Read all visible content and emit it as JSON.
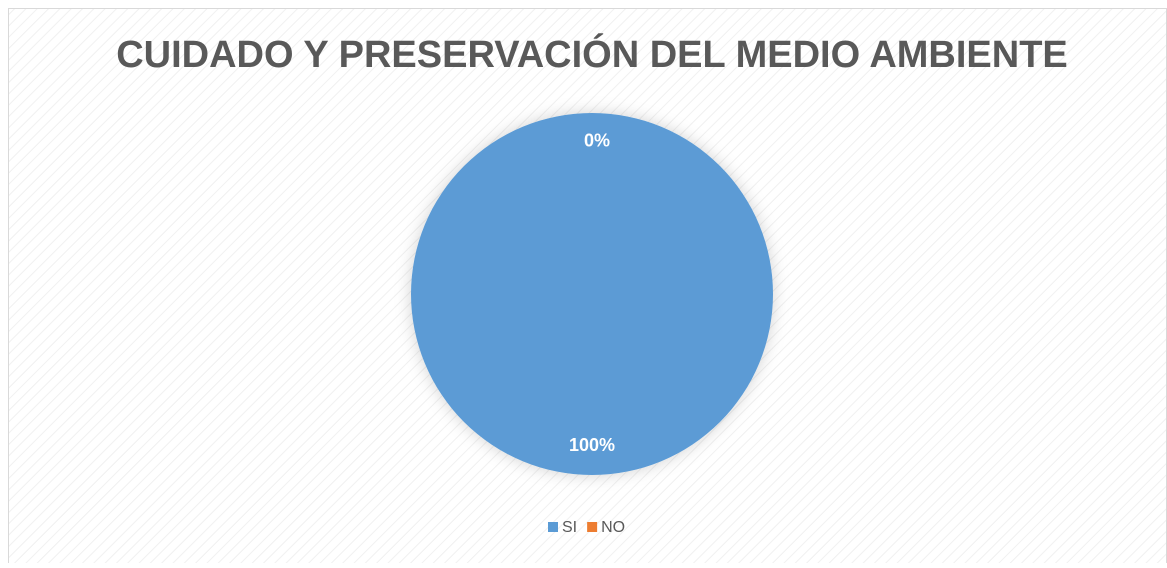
{
  "chart_data": {
    "type": "pie",
    "title": "CUIDADO Y PRESERVACIÓN DEL MEDIO AMBIENTE",
    "categories": [
      "SI",
      "NO"
    ],
    "values": [
      100,
      0
    ],
    "value_labels": [
      "100%",
      "0%"
    ],
    "colors": [
      "#5b9bd5",
      "#ed7d31"
    ],
    "legend": "bottom"
  }
}
